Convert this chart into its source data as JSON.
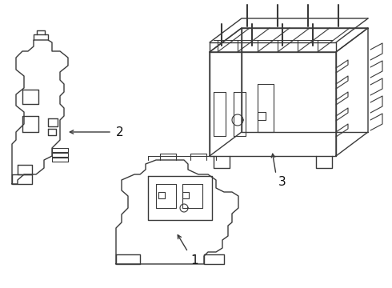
{
  "background_color": "#ffffff",
  "line_color": "#3a3a3a",
  "line_width": 1.0,
  "label_fontsize": 11,
  "label_color": "#111111",
  "fig_width": 4.9,
  "fig_height": 3.6,
  "dpi": 100
}
